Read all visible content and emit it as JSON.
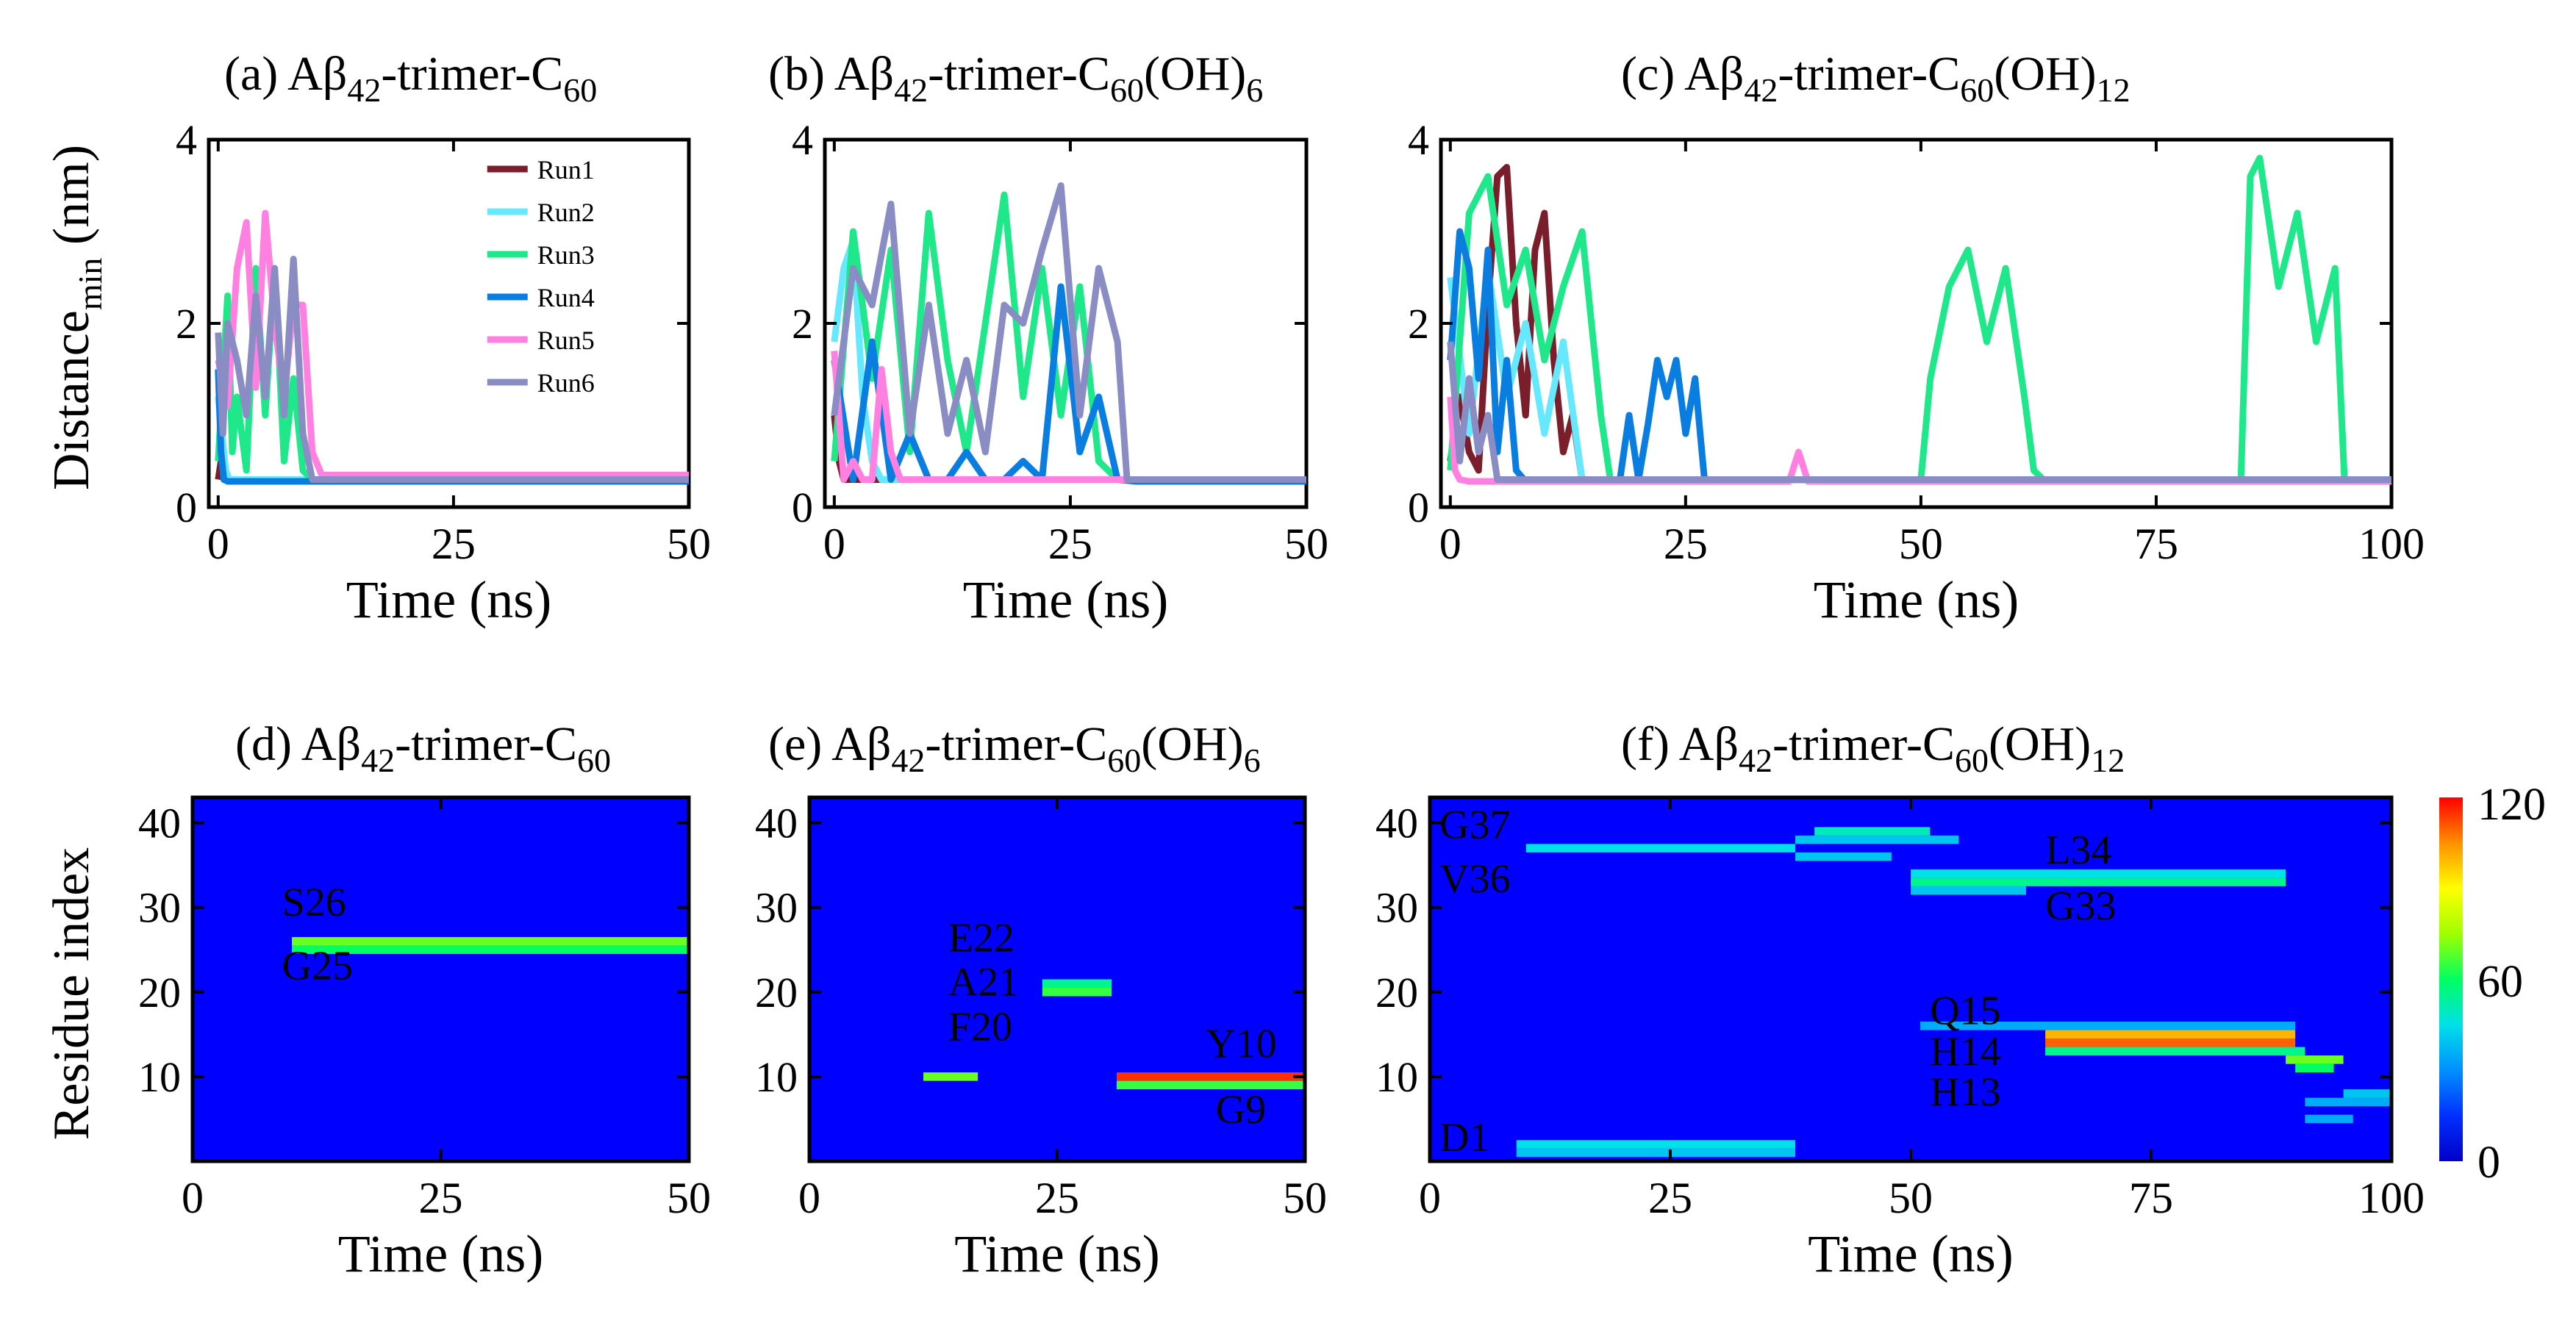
{
  "figure": {
    "time_unit_label": "Time (ns)",
    "distance_label_main": "Distance",
    "distance_label_sub": "min",
    "distance_label_unit": " (nm)",
    "residue_label": "Residue index",
    "colorbar": {
      "min": "0",
      "mid": "60",
      "max": "120",
      "stops": [
        "#0000c8",
        "#0030ff",
        "#0090ff",
        "#00e0e8",
        "#00ff60",
        "#a0ff00",
        "#ffff00",
        "#ff9000",
        "#ff0000"
      ]
    },
    "background_color": "#0000ff"
  },
  "titles": {
    "a": {
      "pre": "(a) Aβ",
      "sub1": "42",
      "mid": "-trimer-C",
      "sub2": "60",
      "post": "",
      "sub3": ""
    },
    "b": {
      "pre": "(b) Aβ",
      "sub1": "42",
      "mid": "-trimer-C",
      "sub2": "60",
      "post": "(OH)",
      "sub3": "6"
    },
    "c": {
      "pre": "(c) Aβ",
      "sub1": "42",
      "mid": "-trimer-C",
      "sub2": "60",
      "post": "(OH)",
      "sub3": "12"
    },
    "d": {
      "pre": "(d) Aβ",
      "sub1": "42",
      "mid": "-trimer-C",
      "sub2": "60",
      "post": "",
      "sub3": ""
    },
    "e": {
      "pre": "(e) Aβ",
      "sub1": "42",
      "mid": "-trimer-C",
      "sub2": "60",
      "post": "(OH)",
      "sub3": "6"
    },
    "f": {
      "pre": "(f) Aβ",
      "sub1": "42",
      "mid": "-trimer-C",
      "sub2": "60",
      "post": "(OH)",
      "sub3": "12"
    }
  },
  "chart_data": [
    {
      "id": "a",
      "type": "line",
      "xlabel": "Time (ns)",
      "ylabel": "Distance_min (nm)",
      "xlim": [
        -1,
        50
      ],
      "ylim": [
        0,
        4
      ],
      "xticks": [
        0,
        25,
        50
      ],
      "yticks": [
        0,
        2,
        4
      ],
      "legend": [
        "Run1",
        "Run2",
        "Run3",
        "Run4",
        "Run5",
        "Run6"
      ],
      "series": [
        {
          "name": "Run1",
          "color": "#7b1e2b",
          "x": [
            0,
            0.3,
            0.6,
            1,
            50
          ],
          "y": [
            0.3,
            0.5,
            0.35,
            0.3,
            0.3
          ]
        },
        {
          "name": "Run2",
          "color": "#66e8ff",
          "x": [
            0,
            0.4,
            0.8,
            1.2,
            50
          ],
          "y": [
            1.2,
            0.8,
            0.4,
            0.3,
            0.3
          ]
        },
        {
          "name": "Run3",
          "color": "#1ee88a",
          "x": [
            0,
            0.5,
            1,
            1.5,
            2,
            3,
            4,
            5,
            6,
            7,
            8,
            9,
            10,
            11,
            50
          ],
          "y": [
            0.5,
            1.4,
            2.3,
            0.6,
            1.2,
            0.4,
            2.6,
            1.0,
            2.6,
            0.5,
            1.4,
            0.4,
            0.3,
            0.3,
            0.3
          ]
        },
        {
          "name": "Run4",
          "color": "#0a7ee0",
          "x": [
            0,
            0.3,
            0.6,
            1,
            2,
            50
          ],
          "y": [
            1.5,
            0.6,
            0.3,
            0.28,
            0.28,
            0.28
          ]
        },
        {
          "name": "Run5",
          "color": "#ff80e0",
          "x": [
            0,
            1,
            2,
            3,
            4,
            5,
            6,
            7,
            8,
            9,
            10,
            11,
            50
          ],
          "y": [
            1.6,
            1.1,
            2.6,
            3.1,
            1.3,
            3.2,
            2.0,
            1.2,
            2.2,
            2.2,
            0.6,
            0.35,
            0.35
          ]
        },
        {
          "name": "Run6",
          "color": "#8a8cc4",
          "x": [
            0,
            0.5,
            1,
            2,
            3,
            4,
            5,
            6,
            7,
            8,
            9,
            10,
            50
          ],
          "y": [
            1.9,
            0.8,
            2.0,
            1.6,
            1.0,
            2.3,
            1.2,
            2.6,
            1.0,
            2.7,
            0.8,
            0.3,
            0.3
          ]
        }
      ]
    },
    {
      "id": "b",
      "type": "line",
      "xlabel": "Time (ns)",
      "ylabel": "Distance_min (nm)",
      "xlim": [
        -1,
        50
      ],
      "ylim": [
        0,
        4
      ],
      "xticks": [
        0,
        25,
        50
      ],
      "yticks": [
        0,
        2,
        4
      ],
      "series": [
        {
          "name": "Run1",
          "color": "#7b1e2b",
          "x": [
            0,
            0.5,
            1,
            50
          ],
          "y": [
            1.0,
            0.5,
            0.3,
            0.3
          ]
        },
        {
          "name": "Run2",
          "color": "#66e8ff",
          "x": [
            0,
            1,
            2,
            3,
            4,
            5,
            6,
            50
          ],
          "y": [
            1.8,
            2.6,
            2.9,
            1.2,
            0.5,
            0.3,
            0.3,
            0.3
          ]
        },
        {
          "name": "Run3",
          "color": "#1ee88a",
          "x": [
            0,
            2,
            4,
            6,
            8,
            10,
            12,
            14,
            16,
            18,
            20,
            22,
            24,
            26,
            28,
            30,
            32,
            50
          ],
          "y": [
            0.5,
            3.0,
            1.4,
            2.8,
            0.6,
            3.2,
            1.6,
            0.6,
            2.0,
            3.4,
            1.2,
            2.6,
            1.0,
            2.4,
            0.5,
            0.3,
            0.3,
            0.3
          ]
        },
        {
          "name": "Run4",
          "color": "#0a7ee0",
          "x": [
            0,
            2,
            4,
            6,
            8,
            10,
            12,
            14,
            16,
            18,
            20,
            22,
            24,
            26,
            28,
            30,
            32,
            50
          ],
          "y": [
            1.6,
            0.3,
            1.8,
            0.3,
            0.8,
            0.3,
            0.3,
            0.6,
            0.3,
            0.3,
            0.5,
            0.3,
            2.4,
            0.6,
            1.2,
            0.3,
            0.28,
            0.28
          ]
        },
        {
          "name": "Run5",
          "color": "#ff80e0",
          "x": [
            0,
            1,
            2,
            3,
            4,
            5,
            6,
            7,
            50
          ],
          "y": [
            1.7,
            0.3,
            0.5,
            0.3,
            0.3,
            1.5,
            0.6,
            0.3,
            0.3
          ]
        },
        {
          "name": "Run6",
          "color": "#8a8cc4",
          "x": [
            0,
            2,
            4,
            6,
            8,
            10,
            12,
            14,
            16,
            18,
            20,
            22,
            24,
            26,
            28,
            30,
            31,
            50
          ],
          "y": [
            1.0,
            2.6,
            2.2,
            3.3,
            0.8,
            2.2,
            0.8,
            1.6,
            0.6,
            2.2,
            2.0,
            2.8,
            3.5,
            1.0,
            2.6,
            1.8,
            0.3,
            0.3
          ]
        }
      ]
    },
    {
      "id": "c",
      "type": "line",
      "xlabel": "Time (ns)",
      "ylabel": "Distance_min (nm)",
      "xlim": [
        -1,
        100
      ],
      "ylim": [
        0,
        4
      ],
      "xticks": [
        0,
        25,
        50,
        75,
        100
      ],
      "yticks": [
        0,
        2,
        4
      ],
      "series": [
        {
          "name": "Run1",
          "color": "#7b1e2b",
          "x": [
            0,
            1,
            2,
            3,
            4,
            5,
            6,
            7,
            8,
            9,
            10,
            11,
            12,
            13,
            14,
            15,
            16,
            100
          ],
          "y": [
            0.5,
            1.2,
            0.6,
            0.4,
            2.2,
            3.6,
            3.7,
            2.0,
            1.0,
            2.8,
            3.2,
            1.6,
            0.6,
            1.0,
            0.3,
            0.3,
            0.3,
            0.3
          ]
        },
        {
          "name": "Run2",
          "color": "#66e8ff",
          "x": [
            0,
            2,
            4,
            6,
            8,
            10,
            12,
            14,
            16,
            100
          ],
          "y": [
            2.5,
            0.8,
            2.6,
            1.2,
            2.0,
            0.8,
            1.8,
            0.3,
            0.3,
            0.3
          ]
        },
        {
          "name": "Run3",
          "color": "#1ee88a",
          "x": [
            0,
            2,
            4,
            6,
            8,
            10,
            12,
            14,
            16,
            17,
            50,
            51,
            53,
            55,
            57,
            59,
            61,
            62,
            63,
            84,
            85,
            86,
            88,
            90,
            92,
            94,
            95,
            100
          ],
          "y": [
            0.4,
            3.2,
            3.6,
            2.2,
            2.8,
            1.6,
            2.4,
            3.0,
            1.0,
            0.3,
            0.3,
            1.4,
            2.4,
            2.8,
            1.8,
            2.6,
            1.2,
            0.4,
            0.3,
            0.3,
            3.6,
            3.8,
            2.4,
            3.2,
            1.8,
            2.6,
            0.3,
            0.3
          ]
        },
        {
          "name": "Run4",
          "color": "#0a7ee0",
          "x": [
            0,
            1,
            2,
            3,
            4,
            5,
            6,
            7,
            8,
            18,
            19,
            20,
            21,
            22,
            23,
            24,
            25,
            26,
            27,
            100
          ],
          "y": [
            1.6,
            3.0,
            2.6,
            1.4,
            2.8,
            0.6,
            1.6,
            0.4,
            0.28,
            0.28,
            1.0,
            0.3,
            0.9,
            1.6,
            1.2,
            1.6,
            0.8,
            1.4,
            0.3,
            0.28
          ]
        },
        {
          "name": "Run5",
          "color": "#ff80e0",
          "x": [
            0,
            0.5,
            1,
            2,
            36,
            37,
            38,
            100
          ],
          "y": [
            1.2,
            0.4,
            0.3,
            0.28,
            0.28,
            0.6,
            0.28,
            0.28
          ]
        },
        {
          "name": "Run6",
          "color": "#8a8cc4",
          "x": [
            0,
            1,
            2,
            3,
            4,
            5,
            6,
            100
          ],
          "y": [
            1.8,
            0.5,
            1.4,
            0.6,
            1.0,
            0.3,
            0.3,
            0.3
          ]
        }
      ]
    },
    {
      "id": "d",
      "type": "heatmap",
      "xlabel": "Time (ns)",
      "ylabel": "Residue index",
      "xlim": [
        0,
        50
      ],
      "ylim": [
        0,
        43
      ],
      "xticks": [
        0,
        25,
        50
      ],
      "yticks": [
        10,
        20,
        30,
        40
      ],
      "annotations": [
        {
          "text": "S26",
          "x": 9,
          "y": 29
        },
        {
          "text": "G25",
          "x": 9,
          "y": 21.5
        }
      ],
      "contacts": [
        {
          "residue": 25,
          "start": 10,
          "end": 50,
          "value": 60
        },
        {
          "residue": 26,
          "start": 10,
          "end": 50,
          "value": 70
        }
      ]
    },
    {
      "id": "e",
      "type": "heatmap",
      "xlabel": "Time (ns)",
      "ylabel": "Residue index",
      "xlim": [
        0,
        50
      ],
      "ylim": [
        0,
        43
      ],
      "xticks": [
        0,
        25,
        50
      ],
      "yticks": [
        10,
        20,
        30,
        40
      ],
      "annotations": [
        {
          "text": "E22",
          "x": 14,
          "y": 24.8
        },
        {
          "text": "A21",
          "x": 14,
          "y": 19.6
        },
        {
          "text": "F20",
          "x": 14,
          "y": 14.3
        },
        {
          "text": "Y10",
          "x": 40,
          "y": 12.3
        },
        {
          "text": "G9",
          "x": 41,
          "y": 4.5
        }
      ],
      "contacts": [
        {
          "residue": 21,
          "start": 23.5,
          "end": 30.5,
          "value": 55
        },
        {
          "residue": 20,
          "start": 23.5,
          "end": 30.5,
          "value": 65
        },
        {
          "residue": 10,
          "start": 11.5,
          "end": 17,
          "value": 70
        },
        {
          "residue": 10,
          "start": 31,
          "end": 50,
          "value": 115
        },
        {
          "residue": 9,
          "start": 31,
          "end": 50,
          "value": 65
        }
      ]
    },
    {
      "id": "f",
      "type": "heatmap",
      "xlabel": "Time (ns)",
      "ylabel": "Residue index",
      "xlim": [
        0,
        100
      ],
      "ylim": [
        0,
        43
      ],
      "xticks": [
        0,
        25,
        50,
        75,
        100
      ],
      "yticks": [
        10,
        20,
        30,
        40
      ],
      "annotations": [
        {
          "text": "G37",
          "x": 1,
          "y": 38.2
        },
        {
          "text": "V36",
          "x": 1,
          "y": 31.8
        },
        {
          "text": "L34",
          "x": 64,
          "y": 35.2
        },
        {
          "text": "G33",
          "x": 64,
          "y": 28.6
        },
        {
          "text": "Q15",
          "x": 52,
          "y": 16.2
        },
        {
          "text": "H14",
          "x": 52,
          "y": 11.4
        },
        {
          "text": "H13",
          "x": 52,
          "y": 6.6
        },
        {
          "text": "D1",
          "x": 1,
          "y": 1.2
        }
      ],
      "contacts": [
        {
          "residue": 37,
          "start": 10,
          "end": 38,
          "value": 45
        },
        {
          "residue": 38,
          "start": 38,
          "end": 55,
          "value": 40
        },
        {
          "residue": 39,
          "start": 40,
          "end": 52,
          "value": 50
        },
        {
          "residue": 36,
          "start": 38,
          "end": 48,
          "value": 40
        },
        {
          "residue": 34,
          "start": 50,
          "end": 89,
          "value": 45
        },
        {
          "residue": 33,
          "start": 50,
          "end": 89,
          "value": 55
        },
        {
          "residue": 32,
          "start": 50,
          "end": 62,
          "value": 40
        },
        {
          "residue": 16,
          "start": 51,
          "end": 90,
          "value": 35
        },
        {
          "residue": 15,
          "start": 64,
          "end": 90,
          "value": 100
        },
        {
          "residue": 14,
          "start": 64,
          "end": 90,
          "value": 110
        },
        {
          "residue": 13,
          "start": 64,
          "end": 91,
          "value": 55
        },
        {
          "residue": 12,
          "start": 89,
          "end": 95,
          "value": 70
        },
        {
          "residue": 11,
          "start": 90,
          "end": 94,
          "value": 60
        },
        {
          "residue": 8,
          "start": 95,
          "end": 100,
          "value": 40
        },
        {
          "residue": 7,
          "start": 91,
          "end": 100,
          "value": 35
        },
        {
          "residue": 5,
          "start": 91,
          "end": 96,
          "value": 35
        },
        {
          "residue": 2,
          "start": 9,
          "end": 38,
          "value": 45
        },
        {
          "residue": 1,
          "start": 9,
          "end": 38,
          "value": 40
        }
      ]
    }
  ]
}
